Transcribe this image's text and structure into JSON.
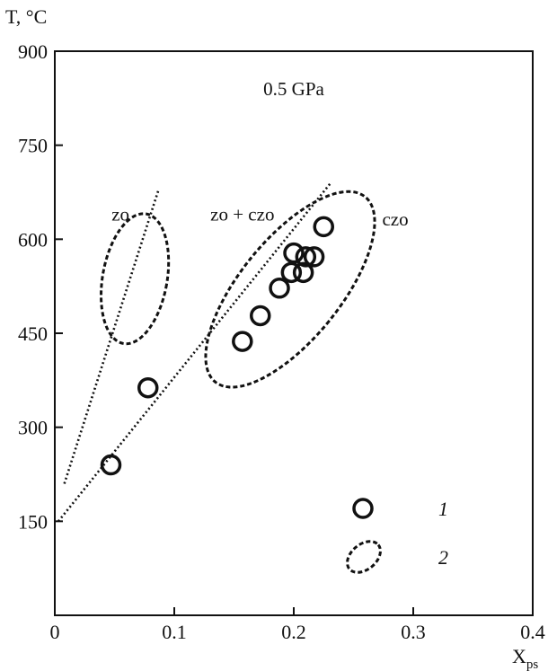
{
  "chart_data": {
    "type": "scatter",
    "title": "",
    "ylabel": "T, °C",
    "xlabel": "X",
    "xlabel_sub": "ps",
    "xlim": [
      0,
      0.4
    ],
    "ylim": [
      0,
      900
    ],
    "xticks": [
      {
        "value": 0,
        "label": "0"
      },
      {
        "value": 0.1,
        "label": "0.1"
      },
      {
        "value": 0.2,
        "label": "0.2"
      },
      {
        "value": 0.3,
        "label": "0.3"
      },
      {
        "value": 0.4,
        "label": "0.4"
      }
    ],
    "yticks": [
      {
        "value": 150,
        "label": "150"
      },
      {
        "value": 300,
        "label": "300"
      },
      {
        "value": 450,
        "label": "450"
      },
      {
        "value": 600,
        "label": "600"
      },
      {
        "value": 750,
        "label": "750"
      },
      {
        "value": 900,
        "label": "900"
      }
    ],
    "grid": false,
    "annotations": [
      {
        "text": "0.5 GPa",
        "x": 0.2,
        "y": 830
      },
      {
        "text": "zo",
        "x": 0.055,
        "y": 630
      },
      {
        "text": "zo + czo",
        "x": 0.157,
        "y": 630
      },
      {
        "text": "czo",
        "x": 0.285,
        "y": 622
      }
    ],
    "series": [
      {
        "marker": "circle",
        "points": [
          {
            "x": 0.047,
            "y": 240
          },
          {
            "x": 0.078,
            "y": 363
          },
          {
            "x": 0.157,
            "y": 437
          },
          {
            "x": 0.172,
            "y": 478
          },
          {
            "x": 0.188,
            "y": 522
          },
          {
            "x": 0.198,
            "y": 547
          },
          {
            "x": 0.208,
            "y": 547
          },
          {
            "x": 0.2,
            "y": 578
          },
          {
            "x": 0.21,
            "y": 572
          },
          {
            "x": 0.217,
            "y": 572
          },
          {
            "x": 0.225,
            "y": 620
          }
        ]
      }
    ],
    "fields": [
      {
        "label": "zo",
        "center": {
          "x": 0.067,
          "y": 537
        },
        "x_radius": 0.027,
        "y_radius": 105,
        "rotation_deg": 10
      },
      {
        "label": "zo + czo",
        "center": {
          "x": 0.197,
          "y": 520
        },
        "x_radius": 0.042,
        "y_radius": 190,
        "rotation_deg": 39
      }
    ],
    "trend_lines": [
      {
        "x1": 0.008,
        "y1": 210,
        "x2": 0.087,
        "y2": 680
      },
      {
        "x1": 0.003,
        "y1": 150,
        "x2": 0.231,
        "y2": 690
      }
    ],
    "legend": {
      "placement": "bottom-right",
      "entries": [
        {
          "symbol": "circle",
          "label": "1"
        },
        {
          "symbol": "dashed-ellipse",
          "label": "2"
        }
      ]
    }
  }
}
